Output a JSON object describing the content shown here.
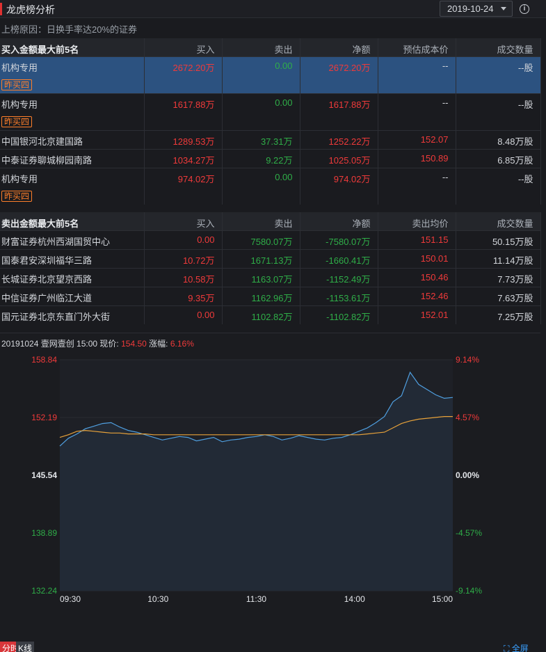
{
  "header": {
    "title": "龙虎榜分析",
    "date": "2019-10-24",
    "info_icon": "info-icon"
  },
  "reason": "上榜原因：日换手率达20%的证券",
  "buy_table": {
    "columns": [
      "买入金额最大前5名",
      "买入",
      "卖出",
      "净额",
      "预估成本价",
      "成交数量"
    ],
    "rows": [
      {
        "name": "机构专用",
        "tag": "昨买四",
        "buy": "2672.20万",
        "sell": "0.00",
        "net": "2672.20万",
        "price": "--",
        "volume": "--股"
      },
      {
        "name": "机构专用",
        "tag": "昨买四",
        "buy": "1617.88万",
        "sell": "0.00",
        "net": "1617.88万",
        "price": "--",
        "volume": "--股"
      },
      {
        "name": "中国银河北京建国路",
        "tag": "",
        "buy": "1289.53万",
        "sell": "37.31万",
        "net": "1252.22万",
        "price": "152.07",
        "volume": "8.48万股"
      },
      {
        "name": "中泰证券聊城柳园南路",
        "tag": "",
        "buy": "1034.27万",
        "sell": "9.22万",
        "net": "1025.05万",
        "price": "150.89",
        "volume": "6.85万股"
      },
      {
        "name": "机构专用",
        "tag": "昨买四",
        "buy": "974.02万",
        "sell": "0.00",
        "net": "974.02万",
        "price": "--",
        "volume": "--股"
      }
    ]
  },
  "sell_table": {
    "columns": [
      "卖出金额最大前5名",
      "买入",
      "卖出",
      "净额",
      "卖出均价",
      "成交数量"
    ],
    "rows": [
      {
        "name": "财富证券杭州西湖国贸中心",
        "buy": "0.00",
        "sell": "7580.07万",
        "net": "-7580.07万",
        "price": "151.15",
        "volume": "50.15万股"
      },
      {
        "name": "国泰君安深圳福华三路",
        "buy": "10.72万",
        "sell": "1671.13万",
        "net": "-1660.41万",
        "price": "150.01",
        "volume": "11.14万股"
      },
      {
        "name": "长城证券北京望京西路",
        "buy": "10.58万",
        "sell": "1163.07万",
        "net": "-1152.49万",
        "price": "150.46",
        "volume": "7.73万股"
      },
      {
        "name": "中信证券广州临江大道",
        "buy": "9.35万",
        "sell": "1162.96万",
        "net": "-1153.61万",
        "price": "152.46",
        "volume": "7.63万股"
      },
      {
        "name": "国元证券北京东直门外大街",
        "buy": "0.00",
        "sell": "1102.82万",
        "net": "-1102.82万",
        "price": "152.01",
        "volume": "7.25万股"
      }
    ]
  },
  "chart_info": {
    "prefix": "20191024 壹网壹创 15:00 现价:",
    "price": "154.50",
    "change_label": "涨幅:",
    "change": "6.16%"
  },
  "chart_data": {
    "type": "line",
    "ylim": [
      132.24,
      158.84
    ],
    "price_ticks": [
      "158.84",
      "152.19",
      "145.54",
      "138.89",
      "132.24"
    ],
    "pct_ticks": [
      "9.14%",
      "4.57%",
      "0.00%",
      "-4.57%",
      "-9.14%"
    ],
    "x_ticks": [
      "09:30",
      "10:30",
      "11:30",
      "14:00",
      "15:00"
    ],
    "series": [
      {
        "values": [
          148.9,
          149.8,
          150.3,
          150.9,
          151.2,
          151.5,
          151.6,
          151.1,
          150.7,
          150.5,
          150.2,
          149.9,
          149.6,
          149.8,
          150.0,
          149.9,
          149.5,
          149.7,
          149.9,
          149.4,
          149.6,
          149.7,
          149.9,
          150.0,
          150.2,
          150.0,
          149.6,
          149.8,
          150.1,
          149.9,
          149.7,
          149.6,
          149.8,
          149.9,
          150.2,
          150.6,
          151.0,
          151.6,
          152.3,
          154.0,
          154.7,
          157.4,
          156.0,
          155.4,
          154.8,
          154.4,
          154.5
        ]
      },
      {
        "values": [
          149.9,
          150.2,
          150.6,
          150.7,
          150.6,
          150.5,
          150.4,
          150.4,
          150.3,
          150.3,
          150.3,
          150.2,
          150.2,
          150.2,
          150.2,
          150.2,
          150.2,
          150.2,
          150.2,
          150.2,
          150.2,
          150.2,
          150.2,
          150.2,
          150.2,
          150.2,
          150.2,
          150.2,
          150.2,
          150.2,
          150.2,
          150.2,
          150.2,
          150.2,
          150.2,
          150.2,
          150.3,
          150.4,
          150.5,
          151.0,
          151.5,
          151.8,
          152.0,
          152.1,
          152.2,
          152.3,
          152.3
        ]
      }
    ],
    "line_color": "#4f9fe0",
    "avg_color": "#e8a23a",
    "up_color": "#f03a3a",
    "down_color": "#2fae48"
  },
  "tabs": {
    "timeshare": "分时",
    "kline": "K线",
    "fullscreen": "全屏"
  }
}
